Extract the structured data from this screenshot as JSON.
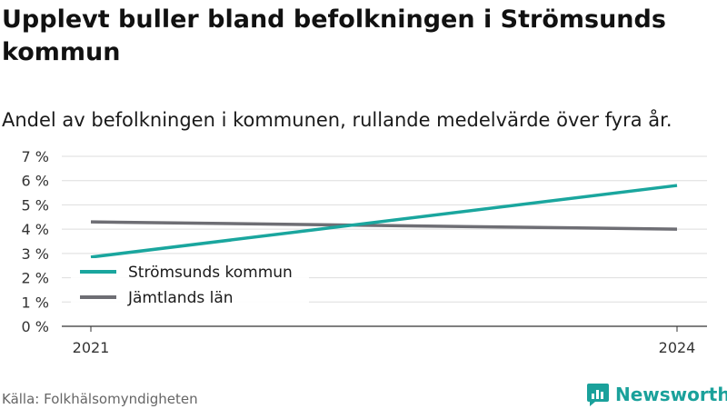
{
  "header": {
    "title": "Upplevt buller bland befolkningen i Strömsunds kommun",
    "subtitle": "Andel av befolkningen i kommunen, rullande medelvärde över fyra år."
  },
  "footer": {
    "source": "Källa: Folkhälsomyndigheten",
    "brand": "Newsworthy",
    "brand_icon": "newsworthy-logo-icon"
  },
  "colors": {
    "stromsund": "#1aa69e",
    "jamtland": "#6e6e74",
    "grid": "#dddddd",
    "axis": "#333333",
    "brand": "#1aa19b"
  },
  "chart_data": {
    "type": "line",
    "x": [
      2021,
      2024
    ],
    "x_tick_labels": [
      "2021",
      "2024"
    ],
    "y_tick_labels": [
      "0 %",
      "1 %",
      "2 %",
      "3 %",
      "4 %",
      "5 %",
      "6 %",
      "7 %"
    ],
    "ylim": [
      0,
      7
    ],
    "grid": true,
    "legend_position": "bottom-left",
    "series": [
      {
        "name": "Strömsunds kommun",
        "values": [
          2.85,
          5.8
        ],
        "color": "#1aa69e"
      },
      {
        "name": "Jämtlands län",
        "values": [
          4.3,
          4.0
        ],
        "color": "#6e6e74"
      }
    ]
  }
}
